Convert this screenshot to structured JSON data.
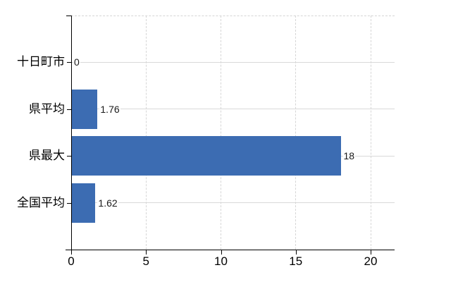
{
  "chart_data": {
    "type": "bar",
    "orientation": "horizontal",
    "title": "",
    "categories": [
      "十日町市",
      "県平均",
      "県最大",
      "全国平均"
    ],
    "values": [
      0,
      1.76,
      18,
      1.62
    ],
    "value_labels": [
      "0",
      "1.76",
      "18",
      "1.62"
    ],
    "x_ticks": [
      0,
      5,
      10,
      15,
      20
    ],
    "xlim": [
      0,
      21.6
    ],
    "ylabel": "",
    "xlabel": "",
    "legend": null,
    "grid": {
      "vertical_gridlines": "dashed",
      "horizontal_category_lines": "solid",
      "plot_top_border": "dashed"
    },
    "colors": {
      "bar": "#3c6cb2",
      "axis": "#000000",
      "grid_vertical": "#d6d6d6",
      "grid_horizontal": "#d9d9d9",
      "text": "#000000",
      "value_text": "#1a1a1a",
      "background": "#ffffff"
    }
  }
}
